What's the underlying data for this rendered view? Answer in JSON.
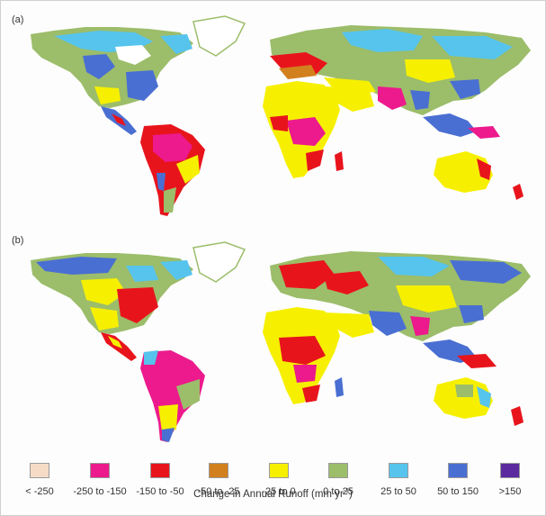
{
  "panels": [
    {
      "label": "(a)"
    },
    {
      "label": "(b)"
    }
  ],
  "legend": {
    "title": "Change in Annual Runoff (mm yr",
    "title_sup": "-1",
    "title_close": ")",
    "items": [
      {
        "label": "< -250",
        "color": "#f6dcc6"
      },
      {
        "label": "-250 to -150",
        "color": "#ec1a8c"
      },
      {
        "label": "-150 to -50",
        "color": "#e8141c"
      },
      {
        "label": "-50 to -25",
        "color": "#d2801e"
      },
      {
        "label": "-25 to 0",
        "color": "#f6f000"
      },
      {
        "label": "0 to 25",
        "color": "#9cbd6a"
      },
      {
        "label": "25 to 50",
        "color": "#56c4ec"
      },
      {
        "label": "50 to 150",
        "color": "#4a6fd2"
      },
      {
        "label": ">150",
        "color": "#5a2a9e"
      }
    ]
  }
}
